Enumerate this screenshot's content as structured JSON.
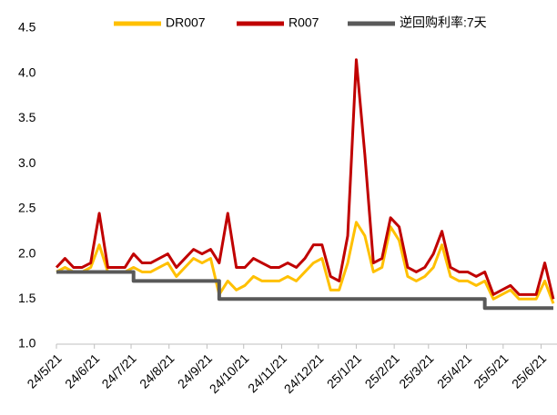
{
  "chart_data": {
    "type": "line",
    "x": [
      "24/5/21",
      "24/5/28",
      "24/6/4",
      "24/6/11",
      "24/6/18",
      "24/6/25",
      "24/7/2",
      "24/7/9",
      "24/7/16",
      "24/7/23",
      "24/7/30",
      "24/8/6",
      "24/8/13",
      "24/8/20",
      "24/8/27",
      "24/9/3",
      "24/9/10",
      "24/9/17",
      "24/9/24",
      "24/10/1",
      "24/10/8",
      "24/10/15",
      "24/10/22",
      "24/10/29",
      "24/11/5",
      "24/11/12",
      "24/11/19",
      "24/11/26",
      "24/12/3",
      "24/12/10",
      "24/12/17",
      "24/12/24",
      "24/12/31",
      "25/1/7",
      "25/1/14",
      "25/1/21",
      "25/1/28",
      "25/2/4",
      "25/2/11",
      "25/2/18",
      "25/2/25",
      "25/3/4",
      "25/3/11",
      "25/3/18",
      "25/3/25",
      "25/4/1",
      "25/4/8",
      "25/4/15",
      "25/4/22",
      "25/4/29",
      "25/5/6",
      "25/5/13",
      "25/5/20",
      "25/5/27",
      "25/6/3",
      "25/6/10",
      "25/6/17",
      "25/6/24",
      "25/7/1"
    ],
    "series": [
      {
        "name": "DR007",
        "color": "#FFC000",
        "values": [
          1.8,
          1.85,
          1.8,
          1.8,
          1.85,
          2.1,
          1.8,
          1.8,
          1.8,
          1.85,
          1.8,
          1.8,
          1.85,
          1.9,
          1.75,
          1.85,
          1.95,
          1.9,
          1.95,
          1.55,
          1.7,
          1.6,
          1.65,
          1.75,
          1.7,
          1.7,
          1.7,
          1.75,
          1.7,
          1.8,
          1.9,
          1.95,
          1.6,
          1.6,
          1.9,
          2.35,
          2.2,
          1.8,
          1.85,
          2.3,
          2.15,
          1.75,
          1.7,
          1.75,
          1.85,
          2.1,
          1.75,
          1.7,
          1.7,
          1.65,
          1.7,
          1.5,
          1.55,
          1.6,
          1.5,
          1.5,
          1.5,
          1.7,
          1.45
        ]
      },
      {
        "name": "R007",
        "color": "#C00000",
        "values": [
          1.85,
          1.95,
          1.85,
          1.85,
          1.9,
          2.45,
          1.85,
          1.85,
          1.85,
          2.0,
          1.9,
          1.9,
          1.95,
          2.0,
          1.85,
          1.95,
          2.05,
          2.0,
          2.05,
          1.9,
          2.45,
          1.85,
          1.85,
          1.95,
          1.9,
          1.85,
          1.85,
          1.9,
          1.85,
          1.95,
          2.1,
          2.1,
          1.75,
          1.7,
          2.2,
          4.15,
          3.1,
          1.9,
          1.95,
          2.4,
          2.3,
          1.85,
          1.8,
          1.85,
          2.0,
          2.25,
          1.85,
          1.8,
          1.8,
          1.75,
          1.8,
          1.55,
          1.6,
          1.65,
          1.55,
          1.55,
          1.55,
          1.9,
          1.5
        ]
      },
      {
        "name": "逆回购利率:7天",
        "color": "#595959",
        "step": true,
        "values": [
          1.8,
          1.8,
          1.8,
          1.8,
          1.8,
          1.8,
          1.8,
          1.8,
          1.8,
          1.7,
          1.7,
          1.7,
          1.7,
          1.7,
          1.7,
          1.7,
          1.7,
          1.7,
          1.7,
          1.5,
          1.5,
          1.5,
          1.5,
          1.5,
          1.5,
          1.5,
          1.5,
          1.5,
          1.5,
          1.5,
          1.5,
          1.5,
          1.5,
          1.5,
          1.5,
          1.5,
          1.5,
          1.5,
          1.5,
          1.5,
          1.5,
          1.5,
          1.5,
          1.5,
          1.5,
          1.5,
          1.5,
          1.5,
          1.5,
          1.5,
          1.4,
          1.4,
          1.4,
          1.4,
          1.4,
          1.4,
          1.4,
          1.4,
          1.4
        ]
      }
    ],
    "xlim": [
      "24/5/21",
      "25/7/4"
    ],
    "xticks": [
      "24/5/21",
      "24/6/21",
      "24/7/21",
      "24/8/21",
      "24/9/21",
      "24/10/21",
      "24/11/21",
      "24/12/21",
      "25/1/21",
      "25/2/21",
      "25/3/21",
      "25/4/21",
      "25/5/21",
      "25/6/21"
    ],
    "ylim": [
      1,
      4.5
    ],
    "yticks": [
      {
        "value": 1,
        "label": "1.0"
      },
      1.5,
      {
        "value": 2,
        "label": "2.0"
      },
      2.5,
      {
        "value": 3,
        "label": "3.0"
      },
      3.5,
      {
        "value": 4,
        "label": "4.0"
      },
      4.5
    ],
    "legend": "top"
  }
}
